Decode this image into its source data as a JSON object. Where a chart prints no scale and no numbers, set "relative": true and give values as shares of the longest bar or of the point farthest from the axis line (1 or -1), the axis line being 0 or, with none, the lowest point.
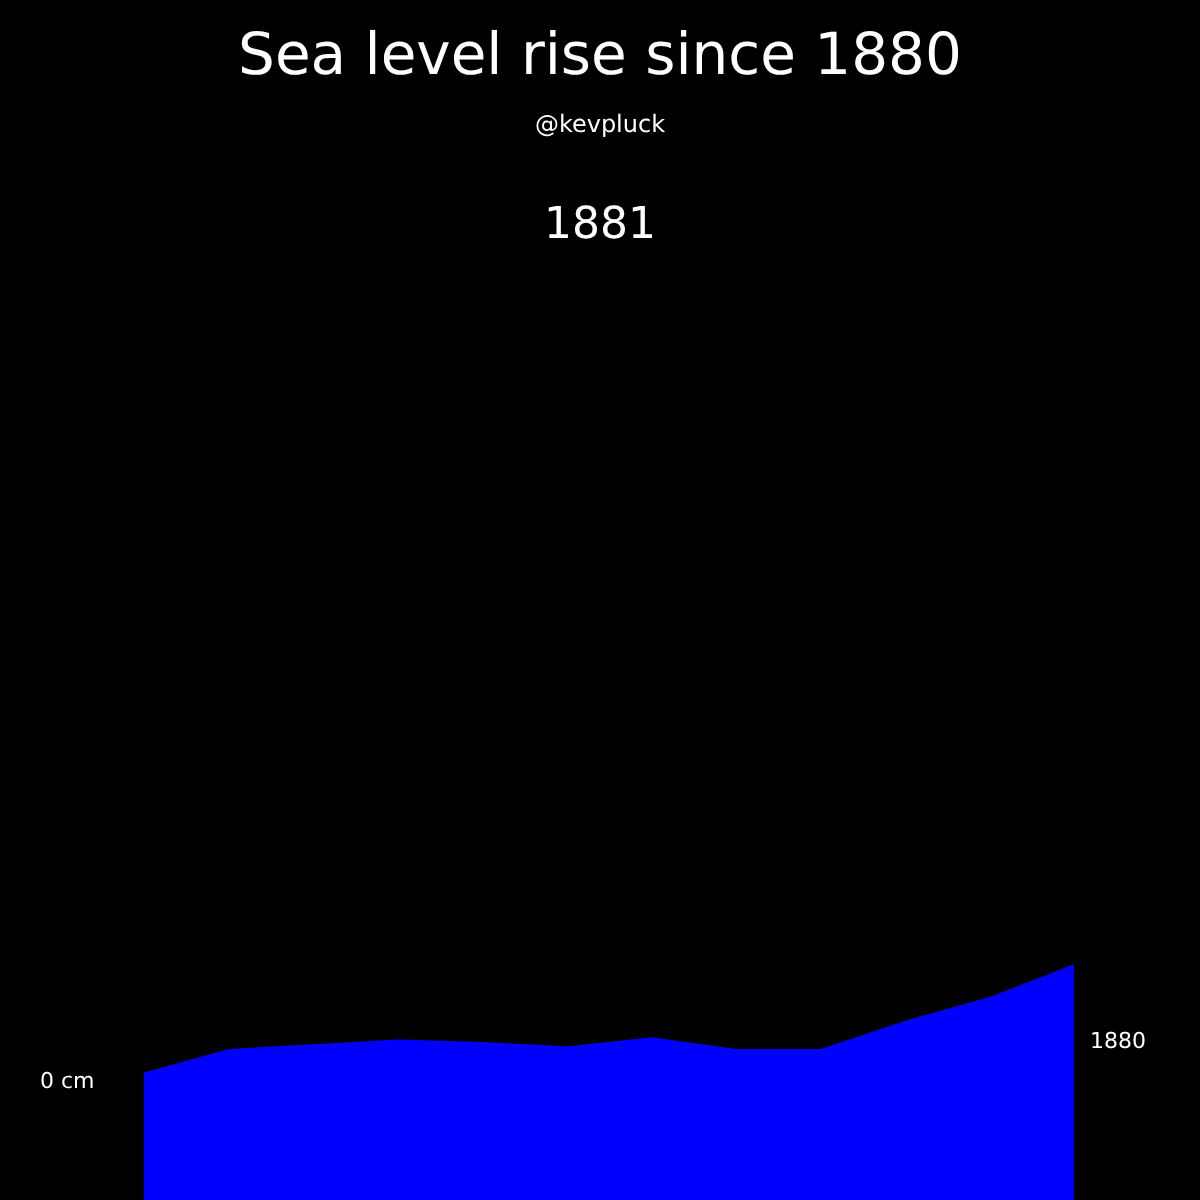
{
  "chart_data": {
    "type": "area",
    "title": "Sea level rise since 1880",
    "subtitle": "@kevpluck",
    "annotations": [
      "1881",
      "0 cm",
      "1880"
    ],
    "relative": true,
    "categories": [
      null,
      null,
      null,
      null,
      null,
      null,
      null,
      null,
      null,
      null,
      null,
      null
    ],
    "series": [
      {
        "color": "#0000ff",
        "values": [
          0.54,
          0.64,
          0.66,
          0.68,
          0.67,
          0.65,
          0.69,
          0.64,
          0.64,
          0.76,
          0.86,
          1
        ]
      }
    ]
  }
}
